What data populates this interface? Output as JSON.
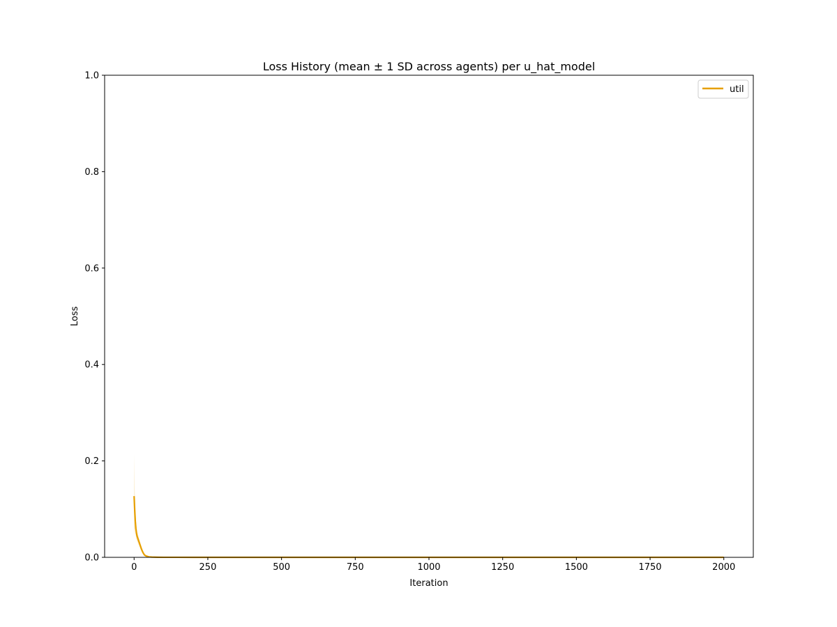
{
  "chart_data": {
    "type": "line",
    "title": "Loss History (mean ± 1 SD across agents) per u_hat_model",
    "xlabel": "Iteration",
    "ylabel": "Loss",
    "xlim": [
      -100,
      2100
    ],
    "ylim": [
      0,
      1.0
    ],
    "xticks": [
      0,
      250,
      500,
      750,
      1000,
      1250,
      1500,
      1750,
      2000
    ],
    "xtick_labels": [
      "0",
      "250",
      "500",
      "750",
      "1000",
      "1250",
      "1500",
      "1750",
      "2000"
    ],
    "yticks": [
      0,
      0.2,
      0.4,
      0.6,
      0.8,
      1.0
    ],
    "ytick_labels": [
      "0.0",
      "0.2",
      "0.4",
      "0.6",
      "0.8",
      "1.0"
    ],
    "grid": false,
    "legend_position": "upper right",
    "series": [
      {
        "name": "util",
        "color": "#E69F00",
        "x": [
          0,
          2,
          4,
          6,
          8,
          10,
          15,
          20,
          25,
          30,
          35,
          40,
          50,
          60,
          80,
          100,
          200,
          500,
          1000,
          1500,
          2000
        ],
        "mean": [
          0.127,
          0.098,
          0.075,
          0.06,
          0.05,
          0.044,
          0.035,
          0.026,
          0.017,
          0.01,
          0.005,
          0.003,
          0.001,
          0.0005,
          0.0002,
          0.0001,
          5e-05,
          2e-05,
          1e-05,
          1e-05,
          1e-05
        ],
        "upper": [
          0.215,
          0.14,
          0.1,
          0.078,
          0.064,
          0.055,
          0.043,
          0.032,
          0.022,
          0.013,
          0.007,
          0.004,
          0.0015,
          0.0008,
          0.0003,
          0.0002,
          0.0001,
          5e-05,
          3e-05,
          3e-05,
          3e-05
        ],
        "lower": [
          0.045,
          0.06,
          0.052,
          0.044,
          0.038,
          0.034,
          0.027,
          0.02,
          0.012,
          0.007,
          0.003,
          0.002,
          0.0005,
          0.0002,
          0.0001,
          5e-05,
          2e-05,
          1e-05,
          0.0,
          0.0,
          0.0
        ]
      }
    ]
  }
}
